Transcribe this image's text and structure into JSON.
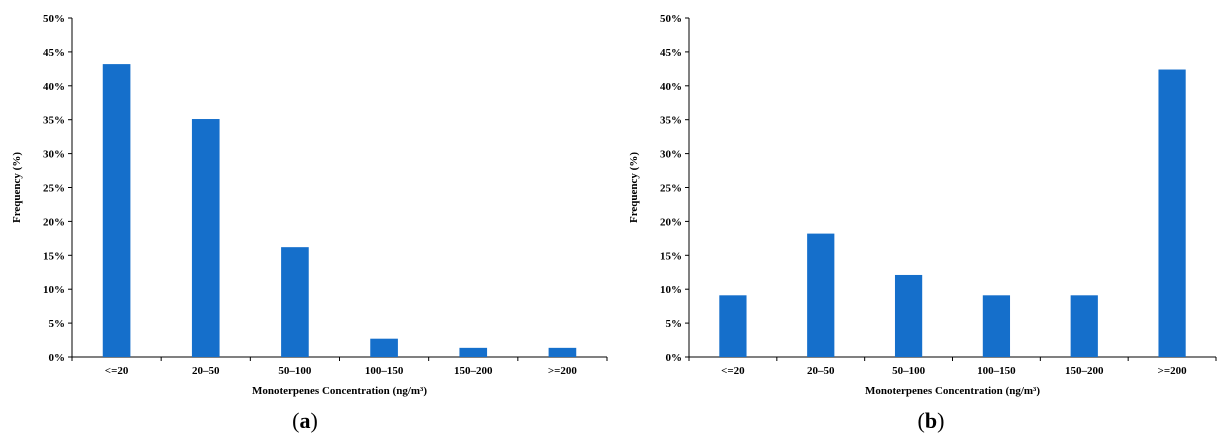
{
  "chart_data": [
    {
      "type": "bar",
      "panel_label": "a",
      "categories": [
        "<=20",
        "20–50",
        "50–100",
        "100–150",
        "150–200",
        ">=200"
      ],
      "values": [
        43.2,
        35.1,
        16.2,
        2.7,
        1.35,
        1.35
      ],
      "yticks": [
        "0%",
        "5%",
        "10%",
        "15%",
        "20%",
        "25%",
        "30%",
        "35%",
        "40%",
        "45%",
        "50%"
      ],
      "ylim": [
        0,
        50
      ],
      "ylabel": "Frequency (%)",
      "xlabel": "Monoterpenes Concentration (ng/m³)",
      "grid": false,
      "color": "#156fcb"
    },
    {
      "type": "bar",
      "panel_label": "b",
      "categories": [
        "<=20",
        "20–50",
        "50–100",
        "100–150",
        "150–200",
        ">=200"
      ],
      "values": [
        9.1,
        18.2,
        12.1,
        9.1,
        9.1,
        42.4
      ],
      "yticks": [
        "0%",
        "5%",
        "10%",
        "15%",
        "20%",
        "25%",
        "30%",
        "35%",
        "40%",
        "45%",
        "50%"
      ],
      "ylim": [
        0,
        50
      ],
      "ylabel": "Frequency (%)",
      "xlabel": "Monoterpenes Concentration (ng/m³)",
      "grid": false,
      "color": "#156fcb"
    }
  ]
}
